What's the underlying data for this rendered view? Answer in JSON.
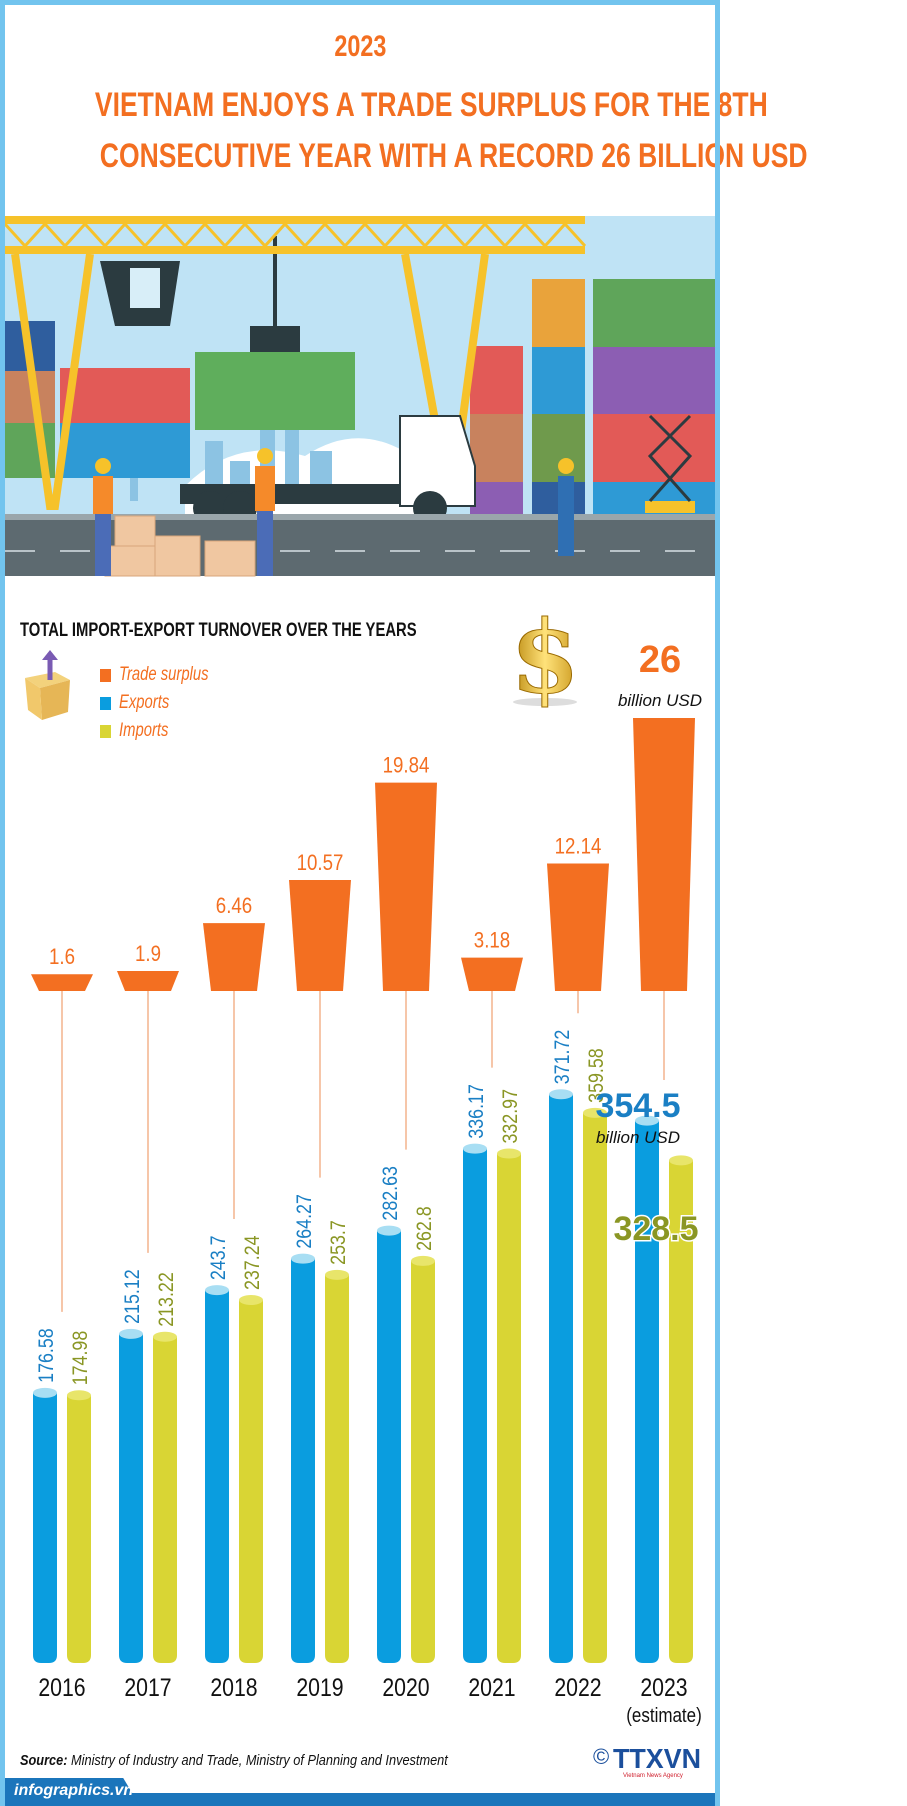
{
  "header": {
    "year": "2023",
    "title_line1": "VIETNAM ENJOYS A TRADE SURPLUS FOR THE 8TH",
    "title_line2": "CONSECUTIVE YEAR WITH A RECORD 26 BILLION USD"
  },
  "chart_data": {
    "type": "bar",
    "title": "TOTAL IMPORT-EXPORT TURNOVER OVER THE YEARS",
    "categories": [
      "2016",
      "2017",
      "2018",
      "2019",
      "2020",
      "2021",
      "2022",
      "2023"
    ],
    "category_note": "(estimate)",
    "unit": "billion USD",
    "legend_placement": "top-left",
    "series": [
      {
        "name": "Trade surplus",
        "color": "#f36f21",
        "values": [
          1.6,
          1.9,
          6.46,
          10.57,
          19.84,
          3.18,
          12.14,
          26
        ],
        "labels": [
          "1.6",
          "1.9",
          "6.46",
          "10.57",
          "19.84",
          "3.18",
          "12.14",
          "26"
        ]
      },
      {
        "name": "Exports",
        "color": "#0a9ddf",
        "values": [
          176.58,
          215.12,
          243.7,
          264.27,
          282.63,
          336.17,
          371.72,
          354.5
        ],
        "labels": [
          "176.58",
          "215.12",
          "243.7",
          "264.27",
          "282.63",
          "336.17",
          "371.72",
          "354.5"
        ]
      },
      {
        "name": "Imports",
        "color": "#d9d534",
        "values": [
          174.98,
          213.22,
          237.24,
          253.7,
          262.8,
          332.97,
          359.58,
          328.5
        ],
        "labels": [
          "174.98",
          "213.22",
          "237.24",
          "253.7",
          "262.8",
          "332.97",
          "359.58",
          "328.5"
        ]
      }
    ],
    "grid": false
  },
  "colors": {
    "accent": "#f36f21",
    "exports_label": "#1a7fc4",
    "imports_label": "#8a9624",
    "frame": "#72c4ee",
    "footer": "#1b75bb"
  },
  "footer": {
    "source_label": "Source:",
    "source_text": "Ministry of Industry and Trade, Ministry of Planning and Investment",
    "site": "infographics.vn",
    "copyright": "©",
    "logo": "TTXVN",
    "logo_sub": "Vietnam News Agency"
  }
}
